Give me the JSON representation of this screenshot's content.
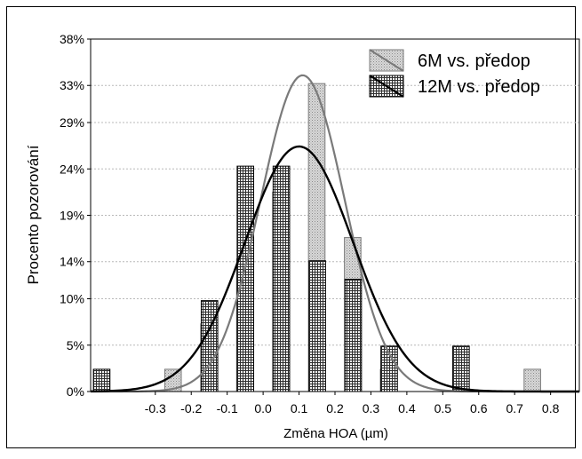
{
  "chart_data": {
    "type": "bar",
    "title": "",
    "xlabel": "Změna HOA (µm)",
    "ylabel": "Procento pozorování",
    "x_ticks": [
      -0.3,
      -0.2,
      -0.1,
      0.0,
      0.1,
      0.2,
      0.3,
      0.4,
      0.5,
      0.6,
      0.7,
      0.8
    ],
    "x_tick_labels": [
      "-0.3",
      "-0.2",
      "-0.1",
      "0.0",
      "0.1",
      "0.2",
      "0.3",
      "0.4",
      "0.5",
      "0.6",
      "0.7",
      "0.8"
    ],
    "xlim": [
      -0.48,
      0.88
    ],
    "y_ticks": [
      0,
      5,
      10,
      14,
      19,
      24,
      29,
      33,
      38
    ],
    "y_tick_labels": [
      "0%",
      "5%",
      "10%",
      "14%",
      "19%",
      "24%",
      "29%",
      "33%",
      "38%"
    ],
    "ylim": [
      0,
      38
    ],
    "grid": "horizontal dashed",
    "legend_position": "top-right",
    "series": [
      {
        "name": "6M  vs. předop",
        "pattern": "dots",
        "fill_color": "#cfcfcf",
        "curve_color": "#7a7a7a",
        "bins": [
          {
            "x": -0.275,
            "value": 2.4
          },
          {
            "x": -0.175,
            "value": 7.3
          },
          {
            "x": -0.075,
            "value": 14.3
          },
          {
            "x": 0.025,
            "value": 21.5
          },
          {
            "x": 0.125,
            "value": 33.2
          },
          {
            "x": 0.225,
            "value": 16.6
          },
          {
            "x": 0.325,
            "value": 2.4
          },
          {
            "x": 0.725,
            "value": 2.4
          }
        ],
        "curve": {
          "mean": 0.11,
          "sd": 0.117
        }
      },
      {
        "name": "12M vs. předop",
        "pattern": "grid",
        "fill_color": "#555555",
        "curve_color": "#000000",
        "bins": [
          {
            "x": -0.425,
            "value": 2.4
          },
          {
            "x": -0.125,
            "value": 9.8
          },
          {
            "x": -0.025,
            "value": 24.3
          },
          {
            "x": 0.075,
            "value": 24.3
          },
          {
            "x": 0.175,
            "value": 14.1
          },
          {
            "x": 0.275,
            "value": 12.1
          },
          {
            "x": 0.375,
            "value": 4.9
          },
          {
            "x": 0.575,
            "value": 4.9
          }
        ],
        "curve": {
          "mean": 0.1,
          "sd": 0.151
        }
      }
    ]
  }
}
